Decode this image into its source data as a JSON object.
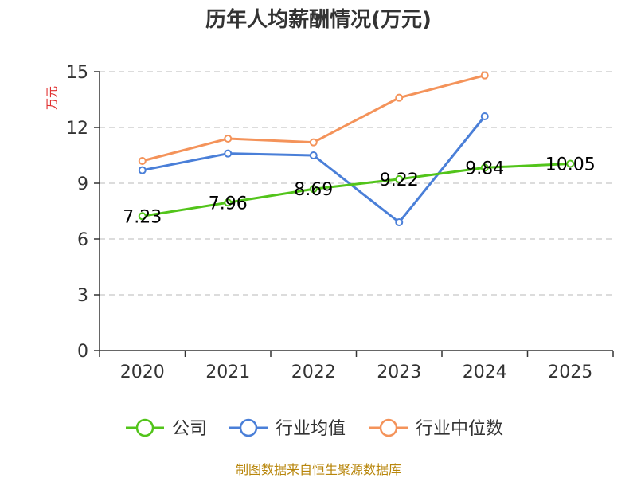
{
  "chart_data": {
    "type": "line",
    "title": "历年人均薪酬情况(万元)",
    "ylabel": "万元",
    "xlabel": "",
    "categories": [
      "2020",
      "2021",
      "2022",
      "2023",
      "2024",
      "2025"
    ],
    "ylim": [
      0,
      15
    ],
    "yticks": [
      0,
      3,
      6,
      9,
      12,
      15
    ],
    "grid": true,
    "legend_position": "bottom",
    "series": [
      {
        "name": "公司",
        "color": "#52c41a",
        "values": [
          7.23,
          7.96,
          8.69,
          9.22,
          9.84,
          10.05
        ],
        "labels": [
          "7.23",
          "7.96",
          "8.69",
          "9.22",
          "9.84",
          "10.05"
        ]
      },
      {
        "name": "行业均值",
        "color": "#4a7fd8",
        "values": [
          9.7,
          10.6,
          10.5,
          6.9,
          12.6,
          null
        ]
      },
      {
        "name": "行业中位数",
        "color": "#f4935a",
        "values": [
          10.2,
          11.4,
          11.2,
          13.6,
          14.8,
          null
        ]
      }
    ]
  },
  "source_text": "制图数据来自恒生聚源数据库"
}
